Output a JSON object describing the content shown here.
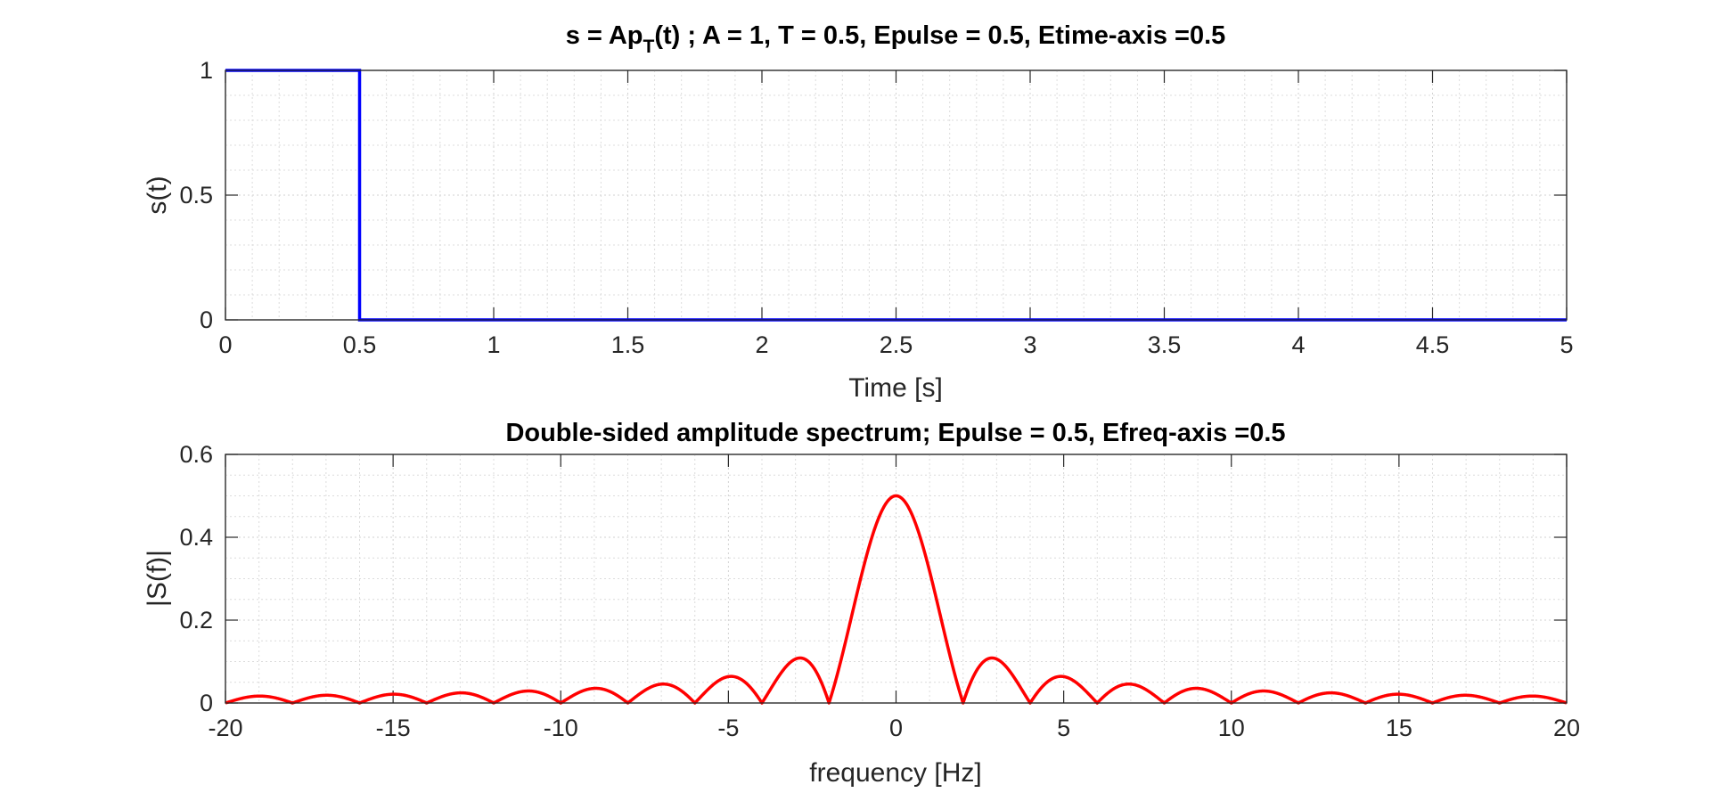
{
  "chart_data": [
    {
      "type": "line",
      "title_main": "s = Ap",
      "title_sub": "T",
      "title_rest": "(t) ; A = 1, T = 0.5, Epulse = 0.5, Etime-axis =0.5",
      "xlabel": "Time [s]",
      "ylabel": "s(t)",
      "xlim": [
        0,
        5
      ],
      "ylim": [
        0,
        1
      ],
      "xticks": [
        0,
        0.5,
        1,
        1.5,
        2,
        2.5,
        3,
        3.5,
        4,
        4.5,
        5
      ],
      "yticks": [
        0,
        0.5,
        1
      ],
      "grid": true,
      "minor_grid": true,
      "color": "#0000ff",
      "series": [
        {
          "x": [
            0,
            0.5,
            0.5,
            5
          ],
          "y": [
            1,
            1,
            0,
            0
          ]
        }
      ]
    },
    {
      "type": "line",
      "title": "Double-sided amplitude spectrum; Epulse = 0.5, Efreq-axis =0.5",
      "xlabel": "frequency [Hz]",
      "ylabel": "|S(f)|",
      "xlim": [
        -20,
        20
      ],
      "ylim": [
        0,
        0.6
      ],
      "xticks": [
        -20,
        -15,
        -10,
        -5,
        0,
        5,
        10,
        15,
        20
      ],
      "yticks": [
        0,
        0.2,
        0.4,
        0.6
      ],
      "grid": true,
      "minor_grid": true,
      "color": "#ff0000",
      "series": [
        {
          "function": "A*T*|sinc(f*T)|",
          "A": 1,
          "T": 0.5,
          "x_range": [
            -20,
            20
          ]
        }
      ]
    }
  ]
}
